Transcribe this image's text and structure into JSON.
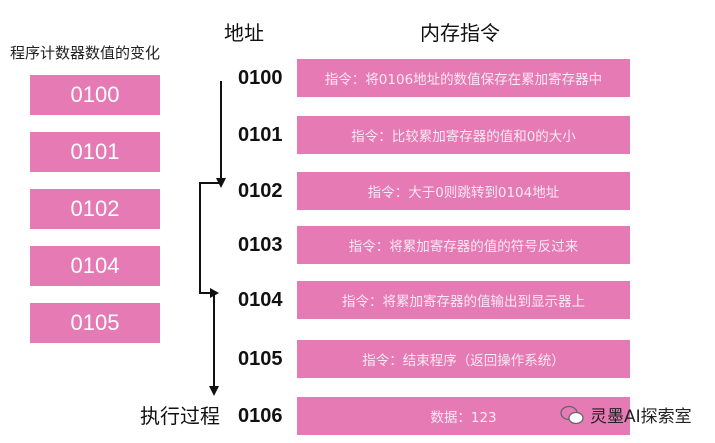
{
  "pc_panel": {
    "title": "程序计数器数值的变化",
    "values": [
      "0100",
      "0101",
      "0102",
      "0104",
      "0105"
    ]
  },
  "headers": {
    "address": "地址",
    "memory": "内存指令"
  },
  "rows": [
    {
      "address": "0100",
      "content": "指令：将0106地址的数值保存在累加寄存器中"
    },
    {
      "address": "0101",
      "content": "指令：比较累加寄存器的值和0的大小"
    },
    {
      "address": "0102",
      "content": "指令：大于0则跳转到0104地址"
    },
    {
      "address": "0103",
      "content": "指令：将累加寄存器的值的符号反过来"
    },
    {
      "address": "0104",
      "content": "指令：将累加寄存器的值输出到显示器上"
    },
    {
      "address": "0105",
      "content": "指令：结束程序（返回操作系统）"
    },
    {
      "address": "0106",
      "content": "数据：123"
    }
  ],
  "execution_label": "执行过程",
  "watermark": "灵墨AI探索室",
  "colors": {
    "box": "#e57ab5",
    "arrow": "#111111"
  }
}
